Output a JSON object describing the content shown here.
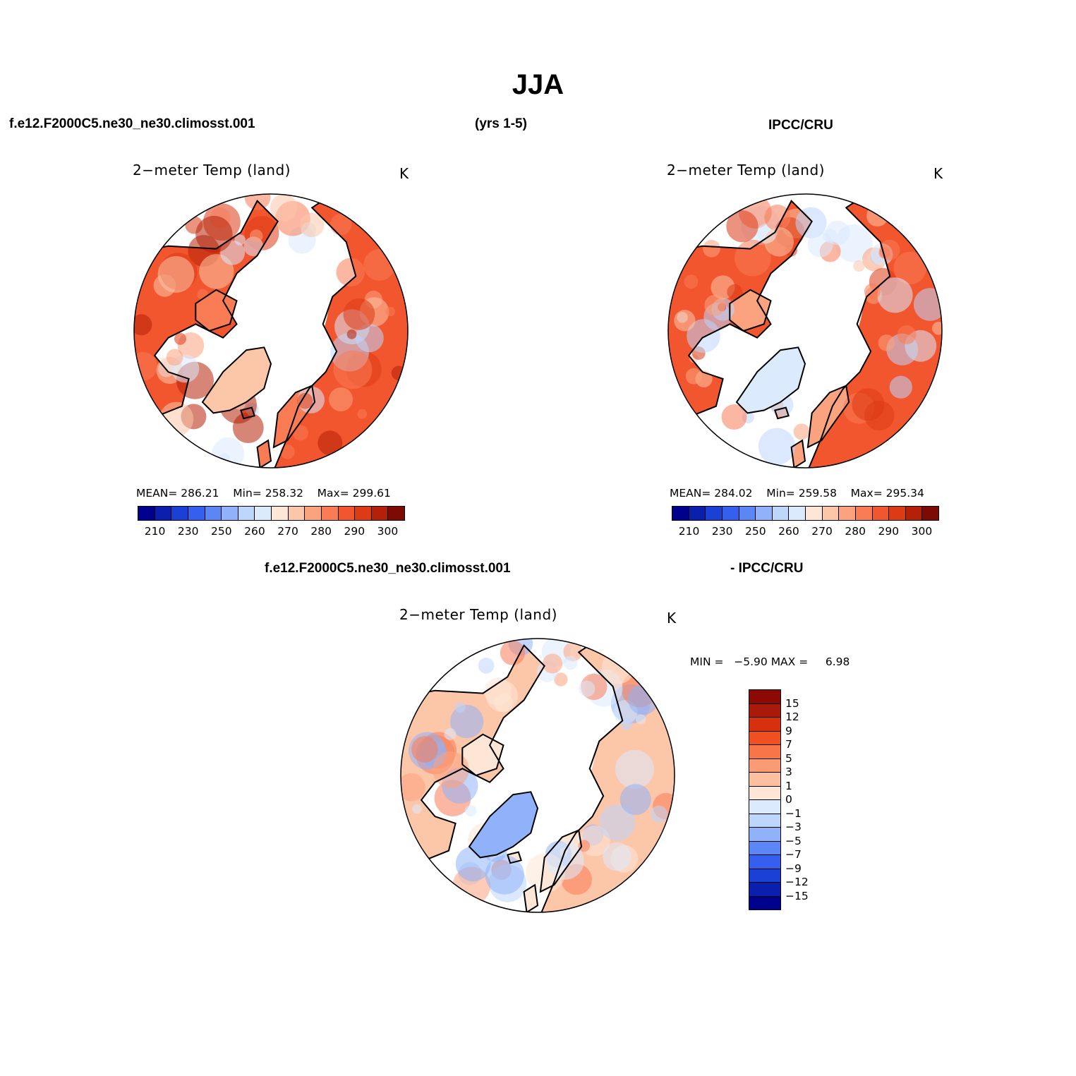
{
  "title": "JJA",
  "header": {
    "case": "f.e12.F2000C5.ne30_ne30.climosst.001",
    "years": "(yrs 1-5)",
    "obs": "IPCC/CRU",
    "diff_case": "f.e12.F2000C5.ne30_ne30.climosst.001",
    "diff_obs": "- IPCC/CRU"
  },
  "panels": [
    {
      "variable": "2−meter Temp (land)",
      "units": "K",
      "stats": {
        "mean_label": "MEAN=",
        "mean": "286.21",
        "min_label": "Min=",
        "min": "258.32",
        "max_label": "Max=",
        "max": "299.61"
      }
    },
    {
      "variable": "2−meter Temp (land)",
      "units": "K",
      "stats": {
        "mean_label": "MEAN=",
        "mean": "284.02",
        "min_label": "Min=",
        "min": "259.58",
        "max_label": "Max=",
        "max": "295.34"
      }
    },
    {
      "variable": "2−meter Temp (land)",
      "units": "K",
      "minmax": {
        "min_label": "MIN =",
        "min": "−5.90",
        "max_label": "MAX =",
        "max": "6.98"
      }
    }
  ],
  "colorbar_abs": {
    "colors": [
      "#00008f",
      "#0a1fad",
      "#1a40d6",
      "#3560ef",
      "#5b86f6",
      "#8fb2fa",
      "#bdd6fc",
      "#dbeafd",
      "#fde6d6",
      "#fcc6a8",
      "#fba27e",
      "#f97c55",
      "#f2562e",
      "#dd3b15",
      "#b52008",
      "#7d0a03"
    ],
    "labels": [
      "210",
      "230",
      "250",
      "260",
      "270",
      "280",
      "290",
      "300"
    ]
  },
  "colorbar_diff": {
    "colors_top_to_bottom": [
      "#8b0a03",
      "#aa1a0a",
      "#d7300f",
      "#f04f22",
      "#f8754a",
      "#fb9b75",
      "#fcc0a0",
      "#fde6d6",
      "#dbeafd",
      "#bdd6fc",
      "#8fb2fa",
      "#5b86f6",
      "#3560ef",
      "#1a40d6",
      "#0a1fad",
      "#00008f"
    ],
    "labels": [
      "15",
      "12",
      "9",
      "7",
      "5",
      "3",
      "1",
      "0",
      "−1",
      "−3",
      "−5",
      "−7",
      "−9",
      "−12",
      "−15"
    ]
  },
  "map_colors": {
    "model_fill": [
      "#f2562e",
      "#dd3b15",
      "#b52008",
      "#f97c55",
      "#fba27e",
      "#fcc6a8",
      "#dbeafd",
      "#bdd6fc"
    ],
    "obs_fill": [
      "#f2562e",
      "#dd3b15",
      "#f97c55",
      "#fba27e",
      "#fcc6a8",
      "#dbeafd",
      "#bdd6fc"
    ],
    "diff_fill": [
      "#fcc6a8",
      "#fba27e",
      "#f97c55",
      "#fde6d6",
      "#bdd6fc",
      "#8fb2fa",
      "#dbeafd"
    ]
  }
}
